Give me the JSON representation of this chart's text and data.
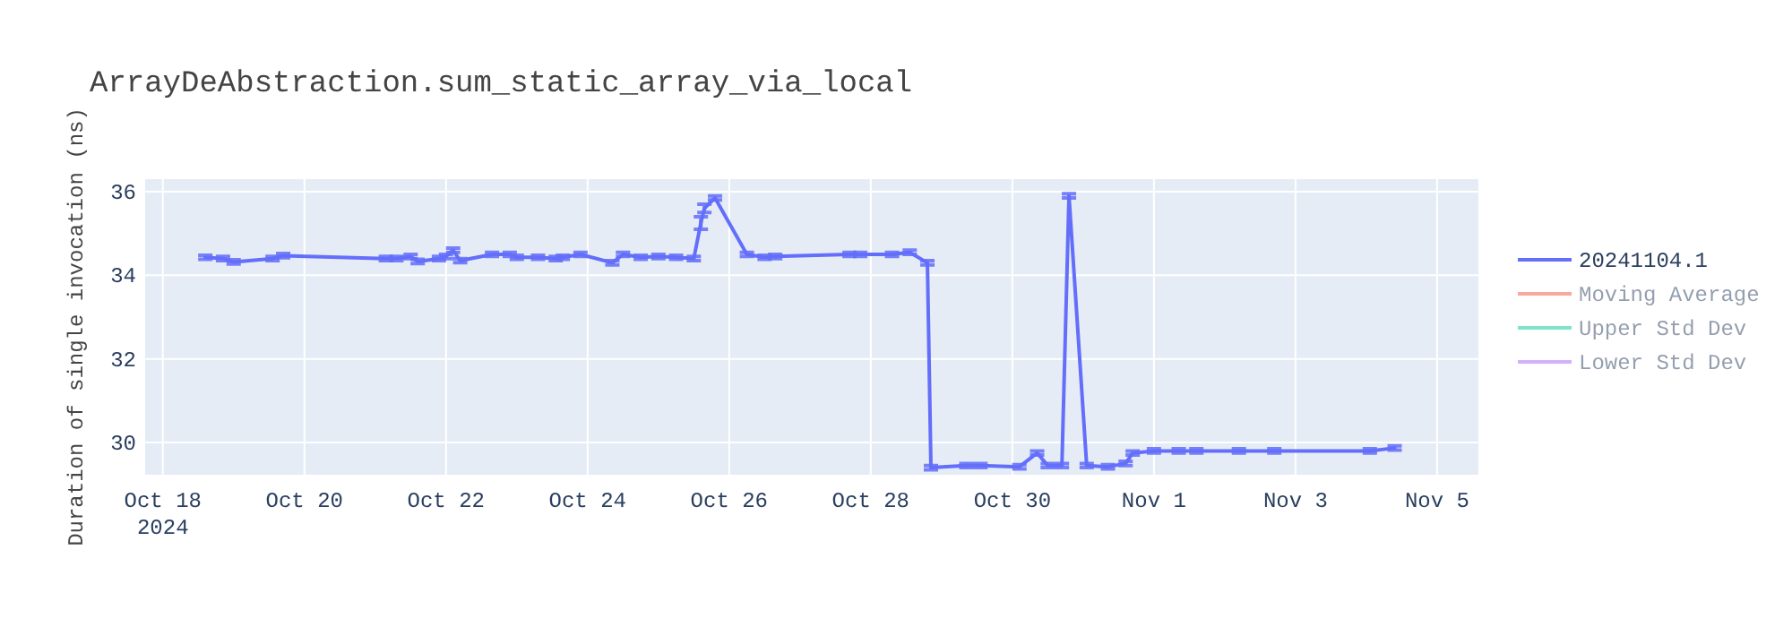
{
  "chart_data": {
    "type": "line",
    "title": "ArrayDeAbstraction.sum_static_array_via_local",
    "ylabel": "Duration of single invocation (ns)",
    "x": [
      "2024-10-18T14:24",
      "2024-10-18T20:24",
      "2024-10-19T00:00",
      "2024-10-19T13:12",
      "2024-10-19T16:48",
      "2024-10-21T03:36",
      "2024-10-21T07:12",
      "2024-10-21T12:00",
      "2024-10-21T14:24",
      "2024-10-21T21:36",
      "2024-10-22T00:00",
      "2024-10-22T02:24",
      "2024-10-22T04:48",
      "2024-10-22T15:36",
      "2024-10-22T21:36",
      "2024-10-23T00:00",
      "2024-10-23T07:12",
      "2024-10-23T13:12",
      "2024-10-23T15:36",
      "2024-10-23T21:36",
      "2024-10-24T08:24",
      "2024-10-24T12:00",
      "2024-10-24T18:00",
      "2024-10-25T00:00",
      "2024-10-25T06:00",
      "2024-10-25T12:00",
      "2024-10-25T14:24",
      "2024-10-25T15:36",
      "2024-10-25T19:12",
      "2024-10-26T06:00",
      "2024-10-26T12:00",
      "2024-10-26T15:36",
      "2024-10-27T16:48",
      "2024-10-27T20:24",
      "2024-10-28T07:12",
      "2024-10-28T13:12",
      "2024-10-28T19:12",
      "2024-10-28T20:24",
      "2024-10-29T08:24",
      "2024-10-29T13:12",
      "2024-10-30T02:24",
      "2024-10-30T08:24",
      "2024-10-30T12:00",
      "2024-10-30T16:48",
      "2024-10-30T19:12",
      "2024-10-31T01:12",
      "2024-10-31T08:24",
      "2024-10-31T14:24",
      "2024-10-31T16:48",
      "2024-11-01T00:00",
      "2024-11-01T08:24",
      "2024-11-01T14:24",
      "2024-11-02T04:48",
      "2024-11-02T16:48",
      "2024-11-04T01:12",
      "2024-11-04T09:36"
    ],
    "series": [
      {
        "name": "20241104.1",
        "color": "#636efa",
        "values": [
          34.43,
          34.4,
          34.32,
          34.4,
          34.47,
          34.4,
          34.4,
          34.45,
          34.33,
          34.4,
          34.45,
          34.6,
          34.35,
          34.5,
          34.5,
          34.43,
          34.43,
          34.4,
          34.43,
          34.5,
          34.3,
          34.5,
          34.43,
          34.45,
          34.43,
          34.4,
          35.25,
          35.6,
          35.85,
          34.5,
          34.43,
          34.45,
          34.5,
          34.5,
          34.5,
          34.55,
          34.3,
          29.4,
          29.45,
          29.45,
          29.42,
          29.75,
          29.45,
          29.45,
          35.9,
          29.45,
          29.42,
          29.5,
          29.75,
          29.8,
          29.8,
          29.8,
          29.8,
          29.8,
          29.8,
          29.87
        ],
        "errors": [
          0.05,
          0.05,
          0.05,
          0.05,
          0.05,
          0.05,
          0.05,
          0.05,
          0.05,
          0.05,
          0.05,
          0.05,
          0.05,
          0.05,
          0.05,
          0.05,
          0.05,
          0.05,
          0.05,
          0.05,
          0.05,
          0.05,
          0.05,
          0.05,
          0.05,
          0.05,
          0.15,
          0.1,
          0.05,
          0.05,
          0.05,
          0.05,
          0.05,
          0.05,
          0.05,
          0.05,
          0.05,
          0.05,
          0.05,
          0.05,
          0.05,
          0.05,
          0.05,
          0.05,
          0.05,
          0.05,
          0.05,
          0.05,
          0.05,
          0.05,
          0.05,
          0.05,
          0.05,
          0.05,
          0.05,
          0.05
        ]
      },
      {
        "name": "Moving Average",
        "color": "#ef553b",
        "values": [
          null,
          null,
          null,
          null,
          null,
          null,
          null,
          null,
          null,
          null,
          null,
          null,
          null,
          null,
          null,
          null,
          null,
          null,
          null,
          null,
          null,
          null,
          null,
          null,
          null,
          null,
          null,
          null,
          null,
          null,
          null,
          null,
          null,
          null,
          null,
          null,
          null,
          null,
          null,
          null,
          null,
          null,
          null,
          null,
          null,
          null,
          null,
          null,
          null,
          null,
          null,
          null,
          null,
          null,
          null,
          null
        ]
      },
      {
        "name": "Upper Std Dev",
        "color": "#00cc96",
        "values": [
          null,
          null,
          null,
          null,
          null,
          null,
          null,
          null,
          null,
          null,
          null,
          null,
          null,
          null,
          null,
          null,
          null,
          null,
          null,
          null,
          null,
          null,
          null,
          null,
          null,
          null,
          null,
          null,
          null,
          null,
          null,
          null,
          null,
          null,
          null,
          null,
          null,
          null,
          null,
          null,
          null,
          null,
          null,
          null,
          null,
          null,
          null,
          null,
          null,
          null,
          null,
          null,
          null,
          null,
          null,
          null
        ]
      },
      {
        "name": "Lower Std Dev",
        "color": "#ab63fa",
        "values": [
          null,
          null,
          null,
          null,
          null,
          null,
          null,
          null,
          null,
          null,
          null,
          null,
          null,
          null,
          null,
          null,
          null,
          null,
          null,
          null,
          null,
          null,
          null,
          null,
          null,
          null,
          null,
          null,
          null,
          null,
          null,
          null,
          null,
          null,
          null,
          null,
          null,
          null,
          null,
          null,
          null,
          null,
          null,
          null,
          null,
          null,
          null,
          null,
          null,
          null,
          null,
          null,
          null,
          null,
          null,
          null
        ]
      }
    ],
    "xlim": [
      "2024-10-17T18:00",
      "2024-11-05T14:00"
    ],
    "xticks": [
      {
        "value": "2024-10-18",
        "label": "Oct 18\n2024"
      },
      {
        "value": "2024-10-20",
        "label": "Oct 20"
      },
      {
        "value": "2024-10-22",
        "label": "Oct 22"
      },
      {
        "value": "2024-10-24",
        "label": "Oct 24"
      },
      {
        "value": "2024-10-26",
        "label": "Oct 26"
      },
      {
        "value": "2024-10-28",
        "label": "Oct 28"
      },
      {
        "value": "2024-10-30",
        "label": "Oct 30"
      },
      {
        "value": "2024-11-01",
        "label": "Nov 1"
      },
      {
        "value": "2024-11-03",
        "label": "Nov 3"
      },
      {
        "value": "2024-11-05",
        "label": "Nov 5"
      }
    ],
    "ylim": [
      29.23,
      36.3
    ],
    "yticks": [
      30,
      32,
      34,
      36
    ],
    "grid": true,
    "legend": "right",
    "line_style": "solid",
    "marker": "none"
  }
}
